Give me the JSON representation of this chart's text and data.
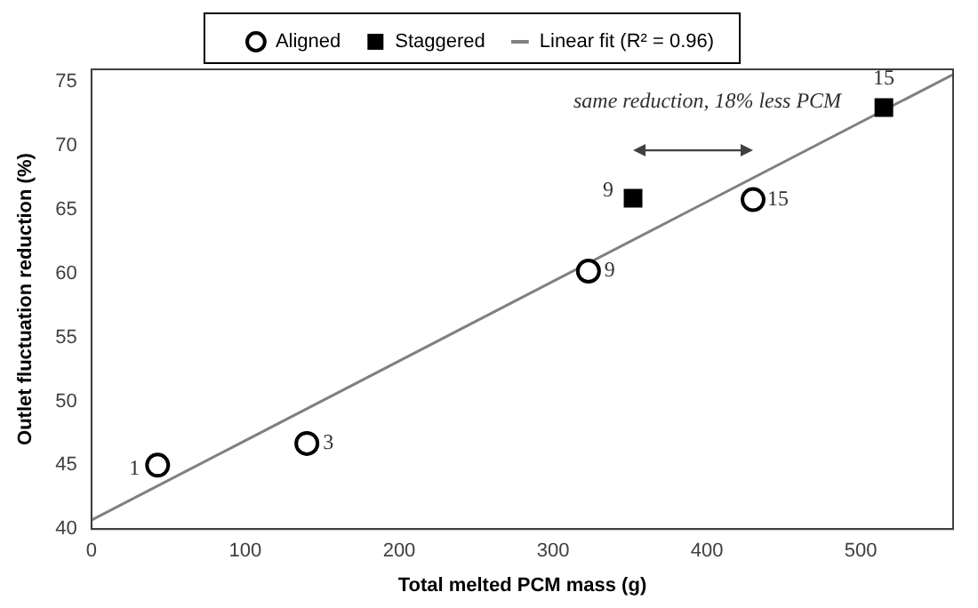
{
  "chart_data": {
    "type": "scatter",
    "xlabel": "Total melted PCM mass (g)",
    "ylabel": "Outlet fluctuation reduction (%)",
    "xlim": [
      0,
      560
    ],
    "ylim": [
      40,
      76
    ],
    "xticks": [
      0,
      100,
      200,
      300,
      400,
      500
    ],
    "yticks": [
      40,
      45,
      50,
      55,
      60,
      65,
      70,
      75
    ],
    "grid": false,
    "legend": "top",
    "series": [
      {
        "name": "Aligned",
        "color": "#000000",
        "marker": "circle",
        "x": [
          43,
          140,
          323,
          430
        ],
        "values": [
          45,
          46.7,
          60.2,
          65.8
        ]
      },
      {
        "name": "Staggered",
        "color": "#000000",
        "marker": "square",
        "x": [
          352,
          515
        ],
        "values": [
          65.9,
          73
        ]
      },
      {
        "name": "Linear fit (R² = 0.96)",
        "type": "line",
        "color": "#808080",
        "marker": "none",
        "line_style": "solid",
        "x": [
          0,
          560
        ],
        "values": [
          40.7,
          75.6
        ]
      }
    ],
    "annotations": [
      "same reduction, 18% less PCM",
      {
        "text": "1",
        "x": 43,
        "y": 45
      },
      {
        "text": "3",
        "x": 140,
        "y": 46.7
      },
      {
        "text": "9",
        "x": 323,
        "y": 60.2
      },
      {
        "text": "15",
        "x": 430,
        "y": 65.8
      },
      {
        "text": "9",
        "x": 352,
        "y": 65.9
      },
      {
        "text": "15",
        "x": 515,
        "y": 73
      }
    ]
  }
}
